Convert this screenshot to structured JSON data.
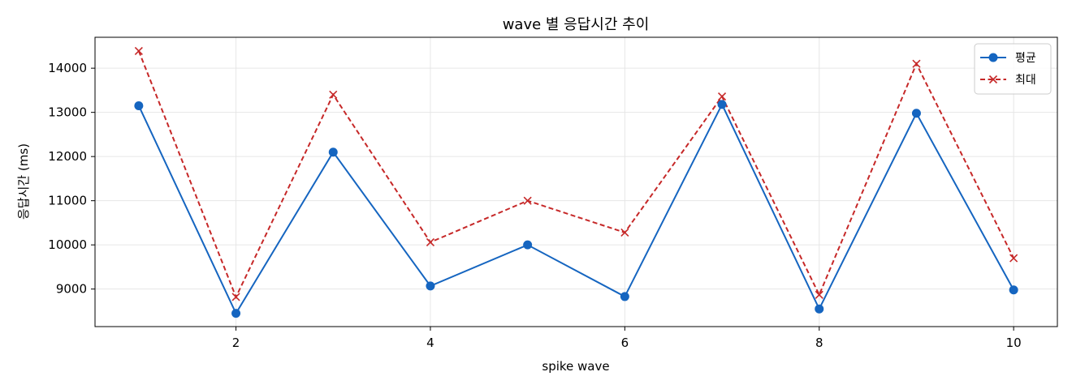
{
  "chart_data": {
    "type": "line",
    "title": "wave 별 응답시간 추이",
    "xlabel": "spike wave",
    "ylabel": "응답시간 (ms)",
    "x": [
      1,
      2,
      3,
      4,
      5,
      6,
      7,
      8,
      9,
      10
    ],
    "xlim": [
      0.55,
      10.45
    ],
    "ylim": [
      8150,
      14700
    ],
    "xticks": [
      2,
      4,
      6,
      8,
      10
    ],
    "yticks": [
      9000,
      10000,
      11000,
      12000,
      13000,
      14000
    ],
    "grid": true,
    "legend_position": "top-right",
    "series": [
      {
        "name": "평균",
        "values": [
          13150,
          8450,
          12100,
          9070,
          10000,
          8830,
          13180,
          8550,
          12980,
          8980
        ],
        "color": "#1565c0",
        "line_style": "solid",
        "marker": "circle"
      },
      {
        "name": "최대",
        "values": [
          14390,
          8820,
          13400,
          10060,
          11000,
          10280,
          13360,
          8870,
          14100,
          9700
        ],
        "color": "#c62828",
        "line_style": "dashed",
        "marker": "x"
      }
    ]
  }
}
